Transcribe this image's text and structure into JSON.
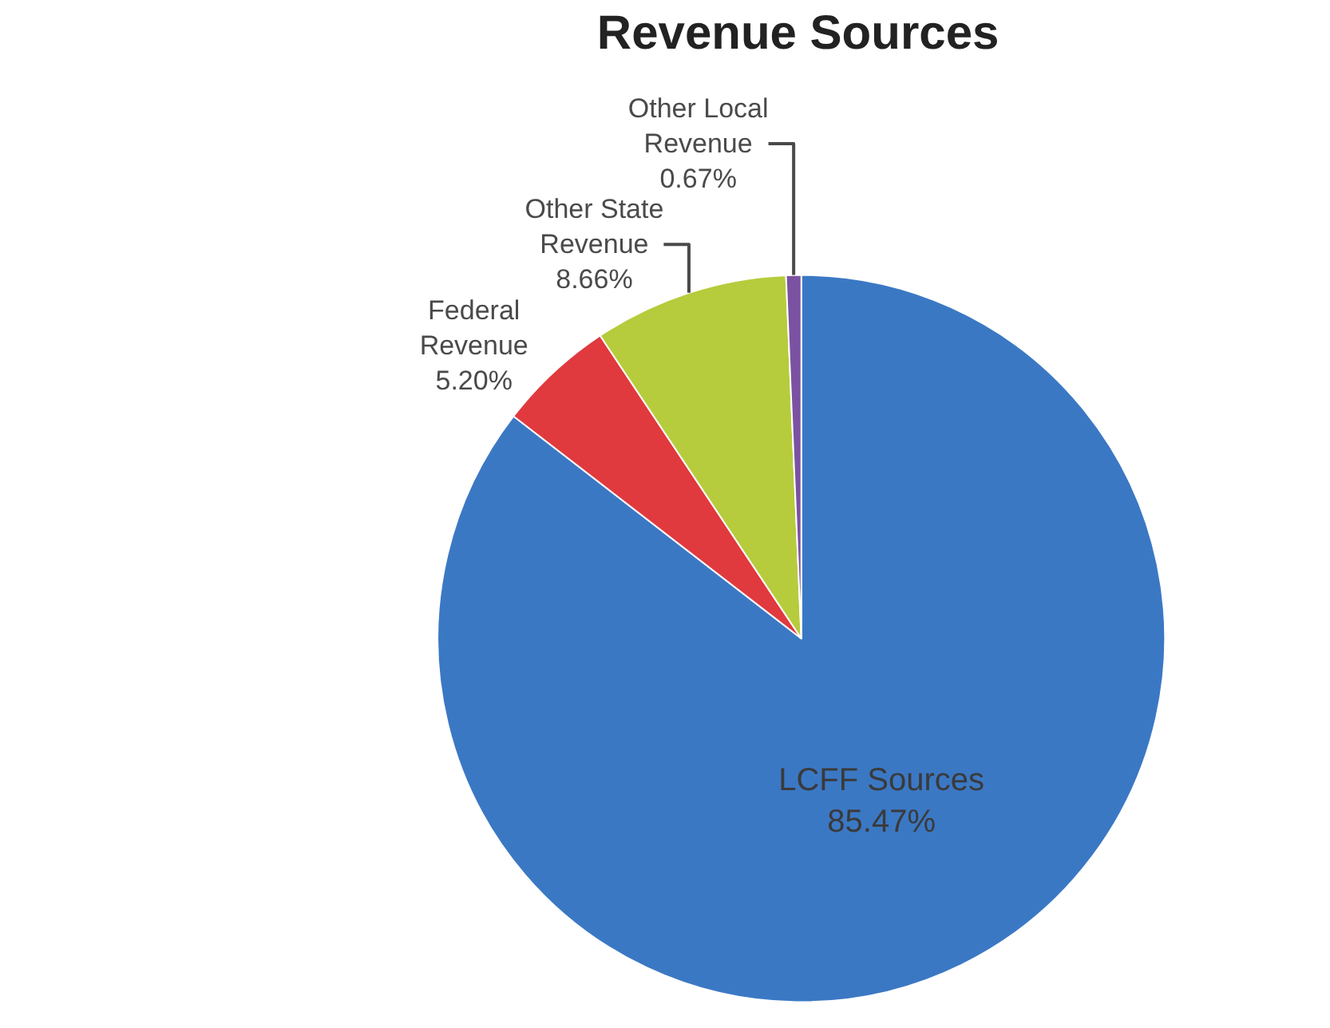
{
  "chart_data": {
    "type": "pie",
    "title": "Revenue Sources",
    "categories": [
      "LCFF Sources",
      "Federal Revenue",
      "Other State Revenue",
      "Other Local Revenue"
    ],
    "values": [
      85.47,
      5.2,
      8.66,
      0.67
    ],
    "value_labels": [
      "85.47%",
      "5.20%",
      "8.66%",
      "0.67%"
    ],
    "colors": [
      "#3b78c4",
      "#e0393e",
      "#b6cc3c",
      "#7b52a2"
    ],
    "legend": false
  }
}
